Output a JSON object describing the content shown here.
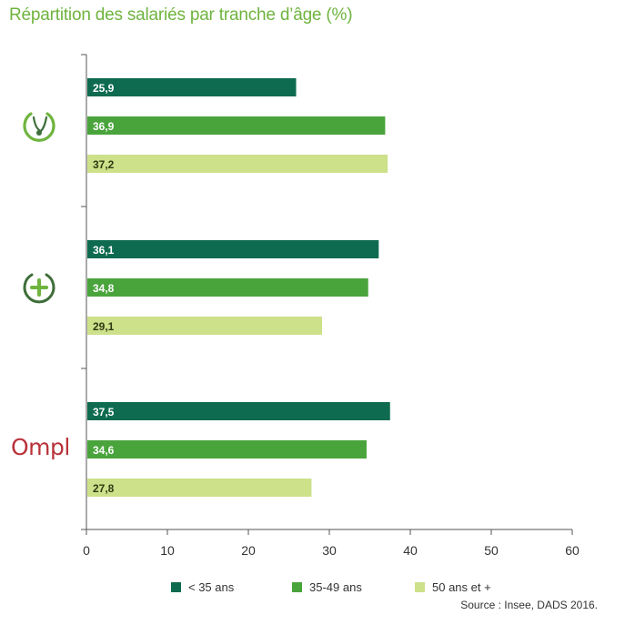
{
  "chart_data": {
    "type": "bar",
    "orientation": "horizontal",
    "title": "Répartition des salariés par tranche d’âge (%)",
    "groups": [
      "logo-1",
      "logo-2",
      "Ompl"
    ],
    "series": [
      {
        "name": "< 35 ans",
        "color": "#0e6b4f",
        "label_color": "#ffffff",
        "values": [
          25.9,
          36.1,
          37.5
        ],
        "labels": [
          "25,9",
          "36,1",
          "37,5"
        ]
      },
      {
        "name": "35-49 ans",
        "color": "#4aa43c",
        "label_color": "#ffffff",
        "values": [
          36.9,
          34.8,
          34.6
        ],
        "labels": [
          "36,9",
          "34,8",
          "34,6"
        ]
      },
      {
        "name": "50 ans et +",
        "color": "#cde08a",
        "label_color": "#2f3a12",
        "values": [
          37.2,
          29.1,
          27.8
        ],
        "labels": [
          "37,2",
          "29,1",
          "27,8"
        ]
      }
    ],
    "xlim": [
      0,
      60
    ],
    "xticks": [
      0,
      10,
      20,
      30,
      40,
      50,
      60
    ],
    "grid": false,
    "legend_position": "bottom"
  },
  "logos": {
    "ompl_text": "Ompl",
    "colors": {
      "green": "#6fb43f",
      "dark_green": "#3f6e3a",
      "ompl_red": "#b8323a"
    },
    "icons": [
      "stethoscope-icon",
      "plus-circle-icon"
    ]
  },
  "source": "Source : Insee, DADS 2016."
}
